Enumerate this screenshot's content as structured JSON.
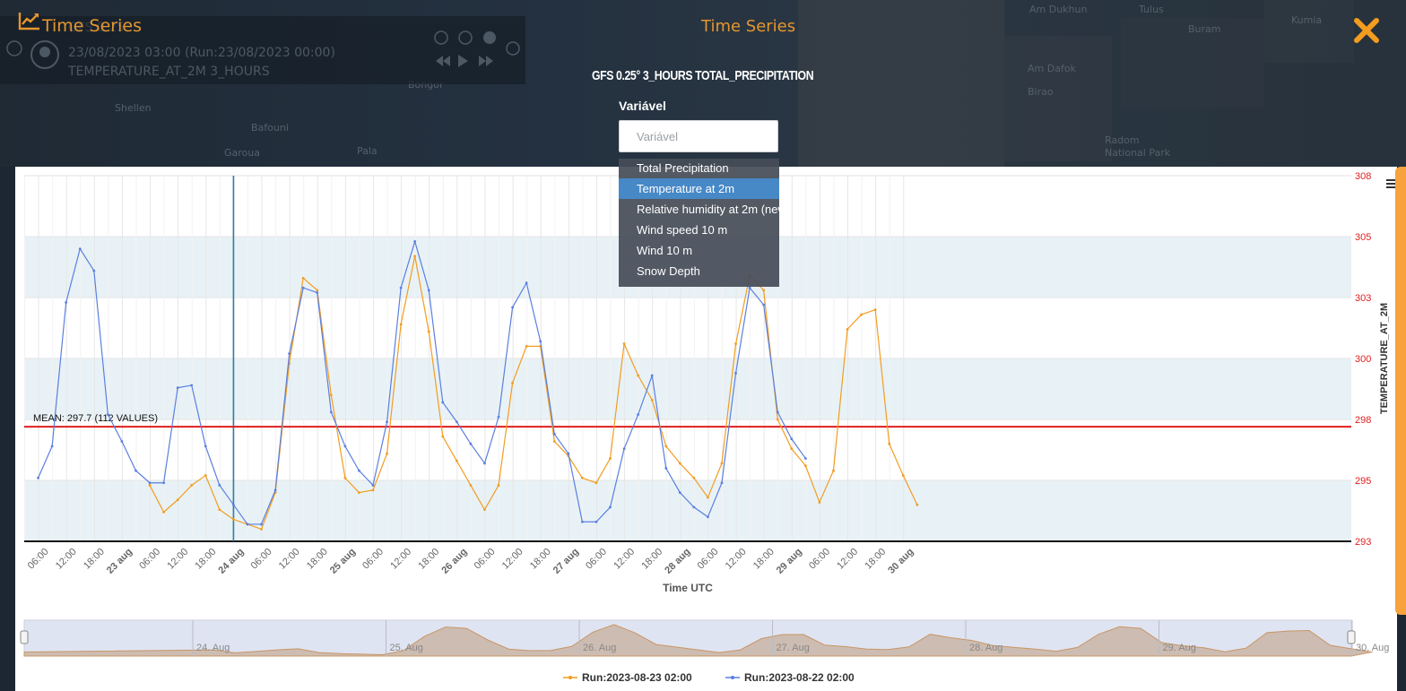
{
  "header": {
    "title": "Time Series",
    "center_title": "Time Series",
    "close_icon": "close-icon"
  },
  "background_panel": {
    "date_line": "23/08/2023 03:00 (Run:23/08/2023 00:00)",
    "variable_line": "TEMPERATURE_AT_2M 3_HOURS",
    "top_line": "GFS 0.25°"
  },
  "map_labels": [
    "Am Dukhun",
    "Tulus",
    "Kumia",
    "Buram",
    "Am Dafok",
    "Birao",
    "Bongor",
    "Shellen",
    "Bafouni",
    "Garoua",
    "Pala",
    "Radom",
    "National Park"
  ],
  "form": {
    "heading": "GFS 0.25° 3_HOURS TOTAL_PRECIPITATION",
    "variable_label": "Variável",
    "variable_placeholder": "Variável",
    "options": [
      "Total Precipitation",
      "Temperature at 2m",
      "Relative humidity at 2m (new",
      "Wind speed 10 m",
      "Wind 10 m",
      "Snow Depth"
    ],
    "highlighted_option": "Temperature at 2m"
  },
  "chart": {
    "xlabel": "Time UTC",
    "ylabel": "TEMPERATURE_AT_2M",
    "mean_label": "MEAN: 297.7 (112 VALUES)",
    "x_ticks": [
      "06:00",
      "12:00",
      "18:00",
      "23 aug",
      "06:00",
      "12:00",
      "18:00",
      "24 aug",
      "06:00",
      "12:00",
      "18:00",
      "25 aug",
      "06:00",
      "12:00",
      "18:00",
      "26 aug",
      "06:00",
      "12:00",
      "18:00",
      "27 aug",
      "06:00",
      "12:00",
      "18:00",
      "28 aug",
      "06:00",
      "12:00",
      "18:00",
      "29 aug",
      "06:00",
      "12:00",
      "18:00",
      "30 aug"
    ],
    "y_ticks": [
      "293",
      "295",
      "298",
      "300",
      "303",
      "305",
      "308"
    ],
    "navigator_labels": [
      "24. Aug",
      "25. Aug",
      "26. Aug",
      "27. Aug",
      "28. Aug",
      "29. Aug",
      "30. Aug"
    ],
    "legend": [
      "Run:2023-08-23 02:00",
      "Run:2023-08-22 02:00"
    ]
  },
  "chart_data": {
    "type": "line",
    "title": "",
    "xlabel": "Time UTC",
    "ylabel": "TEMPERATURE_AT_2M",
    "ylim": [
      293,
      308
    ],
    "x_step_hours": 3,
    "x_start": "2023-08-22 03:00",
    "mean": 297.7,
    "series": [
      {
        "name": "Run:2023-08-23 02:00",
        "color": "#f39c1f",
        "start_index": 8,
        "values": [
          295.3,
          294.2,
          294.7,
          295.3,
          295.7,
          294.3,
          293.9,
          293.7,
          293.5,
          295.0,
          300.3,
          303.8,
          303.3,
          299.0,
          295.6,
          295.0,
          295.1,
          296.6,
          301.9,
          304.7,
          301.6,
          297.3,
          296.3,
          295.3,
          294.3,
          295.3,
          299.5,
          301.0,
          301.0,
          297.1,
          296.5,
          295.6,
          295.4,
          296.4,
          301.1,
          299.8,
          298.8,
          296.9,
          296.2,
          295.6,
          294.8,
          296.2,
          301.1,
          303.9,
          303.3,
          298.0,
          296.8,
          296.1,
          294.6,
          295.9,
          301.7,
          302.3,
          302.5,
          297.0,
          295.7,
          294.5
        ]
      },
      {
        "name": "Run:2023-08-22 02:00",
        "color": "#5b7fe0",
        "start_index": 0,
        "values": [
          295.6,
          296.9,
          302.8,
          305.0,
          304.1,
          298.2,
          297.1,
          295.9,
          295.4,
          295.4,
          299.3,
          299.4,
          296.9,
          295.3,
          294.5,
          293.7,
          293.7,
          295.1,
          300.7,
          303.4,
          303.2,
          298.3,
          296.9,
          295.9,
          295.3,
          297.9,
          303.4,
          305.3,
          303.3,
          298.7,
          297.9,
          297.0,
          296.2,
          298.1,
          302.6,
          303.6,
          301.2,
          297.4,
          296.6,
          293.8,
          293.8,
          294.4,
          296.8,
          298.2,
          299.8,
          296.0,
          295.0,
          294.4,
          294.0,
          295.4,
          299.9,
          303.4,
          302.7,
          298.3,
          297.2,
          296.4
        ]
      }
    ]
  }
}
